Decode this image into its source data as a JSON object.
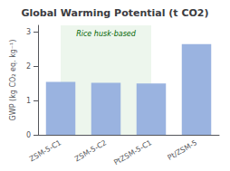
{
  "chart_data": {
    "type": "bar",
    "title": "Global Warming Potential (t CO2)",
    "y_label": "GWP (kg CO₂ eq. kg⁻¹)",
    "categories": [
      "ZSM-5-C1",
      "ZSM-5-C2",
      "PtZSM-5-C1",
      "Pt/ZSM-5"
    ],
    "values": [
      1.55,
      1.52,
      1.5,
      2.65
    ],
    "color": "#9ab3e0",
    "ylim": [
      0,
      3.2
    ],
    "yticks": [
      0,
      1,
      2,
      3
    ],
    "grid": false,
    "annotations": [
      {
        "text": "Rice husk-based",
        "categories": [
          "ZSM-5-C1",
          "ZSM-5-C2",
          "PtZSM-5-C1"
        ]
      }
    ]
  }
}
